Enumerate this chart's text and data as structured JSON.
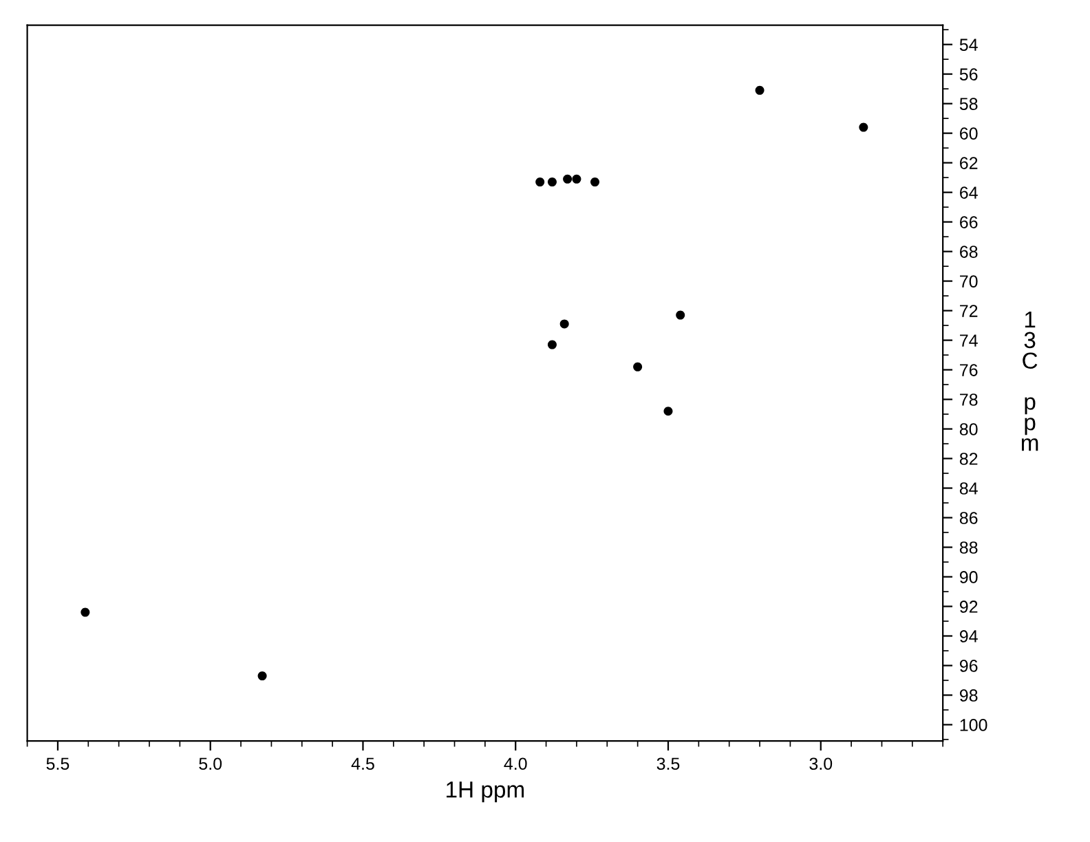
{
  "chart_data": {
    "type": "scatter",
    "xlabel": "1H ppm",
    "ylabel": "13C ppm",
    "x": [
      5.41,
      4.83,
      3.2,
      2.86,
      3.92,
      3.88,
      3.83,
      3.8,
      3.74,
      3.84,
      3.88,
      3.6,
      3.46,
      3.5
    ],
    "series": [
      {
        "color": "#000000",
        "values": [
          92.4,
          96.7,
          57.1,
          59.6,
          63.3,
          63.3,
          63.1,
          63.1,
          63.3,
          72.9,
          74.3,
          75.8,
          72.3,
          78.8
        ]
      }
    ],
    "xlim": [
      5.6,
      2.6
    ],
    "xticks": [
      5.5,
      {
        "value": 5,
        "label": "5.0"
      },
      4.5,
      {
        "value": 4,
        "label": "4.0"
      },
      3.5,
      {
        "value": 3,
        "label": "3.0"
      }
    ],
    "ylim": [
      101.1,
      52.7
    ],
    "yticks": [
      54,
      56,
      58,
      60,
      62,
      64,
      66,
      68,
      70,
      72,
      74,
      76,
      78,
      80,
      82,
      84,
      86,
      88,
      90,
      92,
      94,
      96,
      98,
      100
    ],
    "marker": "circle",
    "grid": false
  }
}
